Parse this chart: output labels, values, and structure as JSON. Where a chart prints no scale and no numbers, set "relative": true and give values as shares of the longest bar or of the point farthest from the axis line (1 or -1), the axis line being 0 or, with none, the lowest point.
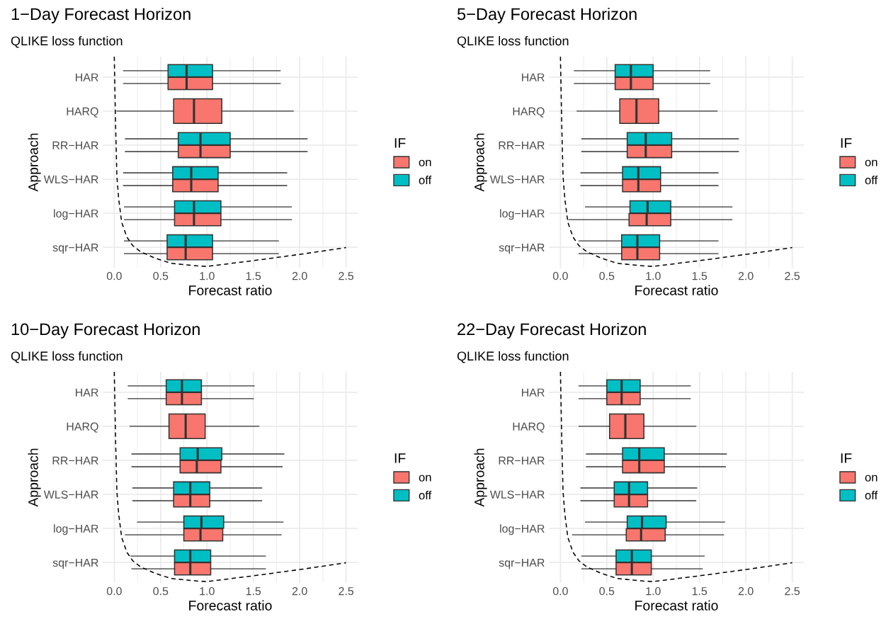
{
  "chart_data": [
    {
      "type": "box",
      "title": "1−Day Forecast Horizon",
      "subtitle": "QLIKE loss function",
      "xlabel": "Forecast ratio",
      "ylabel": "Approach",
      "legend_title": "IF",
      "orientation": "horizontal",
      "grid": true,
      "legend": "right",
      "categories": [
        "HAR",
        "HARQ",
        "RR−HAR",
        "WLS−HAR",
        "log−HAR",
        "sqr−HAR"
      ],
      "xlim": [
        -0.125,
        2.625
      ],
      "xticks": [
        {
          "value": 0,
          "label": "0.0"
        },
        0.5,
        {
          "value": 1,
          "label": "1.0"
        },
        1.5,
        {
          "value": 2,
          "label": "2.0"
        },
        2.5
      ],
      "series": [
        {
          "name": "on",
          "color": "#f8766d",
          "boxes": [
            {
              "low": 0.1,
              "q1": 0.58,
              "median": 0.78,
              "q3": 1.06,
              "high": 1.79
            },
            {
              "low": 0.03,
              "q1": 0.64,
              "median": 0.86,
              "q3": 1.16,
              "high": 1.93
            },
            {
              "low": 0.12,
              "q1": 0.69,
              "median": 0.93,
              "q3": 1.25,
              "high": 2.08
            },
            {
              "low": 0.1,
              "q1": 0.63,
              "median": 0.83,
              "q3": 1.12,
              "high": 1.86
            },
            {
              "low": 0.11,
              "q1": 0.65,
              "median": 0.86,
              "q3": 1.15,
              "high": 1.91
            },
            {
              "low": 0.11,
              "q1": 0.57,
              "median": 0.77,
              "q3": 1.06,
              "high": 1.77
            }
          ]
        },
        {
          "name": "off",
          "color": "#00bfc4",
          "boxes": [
            {
              "low": 0.1,
              "q1": 0.58,
              "median": 0.78,
              "q3": 1.06,
              "high": 1.79
            },
            null,
            {
              "low": 0.12,
              "q1": 0.69,
              "median": 0.93,
              "q3": 1.25,
              "high": 2.08
            },
            {
              "low": 0.1,
              "q1": 0.63,
              "median": 0.83,
              "q3": 1.12,
              "high": 1.86
            },
            {
              "low": 0.11,
              "q1": 0.65,
              "median": 0.86,
              "q3": 1.15,
              "high": 1.91
            },
            {
              "low": 0.11,
              "q1": 0.57,
              "median": 0.77,
              "q3": 1.06,
              "high": 1.77
            }
          ]
        }
      ]
    },
    {
      "type": "line",
      "relative": true,
      "xlim": [
        -0.125,
        2.625
      ],
      "series": [
        {
          "color": "#000000",
          "line_style": "dashed",
          "x": [
            0,
            0.015,
            0.028,
            0.048,
            0.08,
            0.136,
            0.198,
            0.286,
            0.437,
            0.612,
            0.889,
            1.0,
            1.54,
            2.04,
            2.5
          ],
          "values": [
            1.0,
            0.66,
            0.43,
            0.32,
            0.21,
            0.14,
            0.1,
            0.07,
            0.04,
            0.015,
            0.003,
            0,
            0.03,
            0.06,
            0.09
          ]
        }
      ]
    },
    {
      "type": "box",
      "title": "5−Day Forecast Horizon",
      "subtitle": "QLIKE loss function",
      "xlabel": "Forecast ratio",
      "ylabel": "Approach",
      "legend_title": "IF",
      "orientation": "horizontal",
      "grid": true,
      "legend": "right",
      "categories": [
        "HAR",
        "HARQ",
        "RR−HAR",
        "WLS−HAR",
        "log−HAR",
        "sqr−HAR"
      ],
      "xlim": [
        -0.125,
        2.625
      ],
      "xticks": [
        {
          "value": 0,
          "label": "0.0"
        },
        0.5,
        {
          "value": 1,
          "label": "1.0"
        },
        1.5,
        {
          "value": 2,
          "label": "2.0"
        },
        2.5
      ],
      "series": [
        {
          "name": "on",
          "color": "#f8766d",
          "boxes": [
            {
              "low": 0.15,
              "q1": 0.59,
              "median": 0.76,
              "q3": 1.0,
              "high": 1.61
            },
            {
              "low": 0.18,
              "q1": 0.64,
              "median": 0.82,
              "q3": 1.06,
              "high": 1.69
            },
            {
              "low": 0.23,
              "q1": 0.72,
              "median": 0.92,
              "q3": 1.2,
              "high": 1.92
            },
            {
              "low": 0.22,
              "q1": 0.67,
              "median": 0.84,
              "q3": 1.08,
              "high": 1.7
            },
            {
              "low": 0.09,
              "q1": 0.74,
              "median": 0.93,
              "q3": 1.19,
              "high": 1.85
            },
            {
              "low": 0.2,
              "q1": 0.66,
              "median": 0.83,
              "q3": 1.07,
              "high": 1.7
            }
          ]
        },
        {
          "name": "off",
          "color": "#00bfc4",
          "boxes": [
            {
              "low": 0.15,
              "q1": 0.59,
              "median": 0.76,
              "q3": 1.0,
              "high": 1.61
            },
            null,
            {
              "low": 0.23,
              "q1": 0.72,
              "median": 0.92,
              "q3": 1.2,
              "high": 1.92
            },
            {
              "low": 0.22,
              "q1": 0.67,
              "median": 0.84,
              "q3": 1.08,
              "high": 1.7
            },
            {
              "low": 0.27,
              "q1": 0.75,
              "median": 0.94,
              "q3": 1.19,
              "high": 1.85
            },
            {
              "low": 0.2,
              "q1": 0.66,
              "median": 0.83,
              "q3": 1.07,
              "high": 1.7
            }
          ]
        }
      ]
    },
    {
      "type": "line",
      "relative": true,
      "xlim": [
        -0.125,
        2.625
      ],
      "series": [
        {
          "color": "#000000",
          "line_style": "dashed",
          "x": [
            0,
            0.015,
            0.028,
            0.048,
            0.08,
            0.136,
            0.198,
            0.286,
            0.437,
            0.612,
            0.889,
            1.0,
            1.54,
            2.04,
            2.5
          ],
          "values": [
            1.0,
            0.66,
            0.43,
            0.32,
            0.21,
            0.14,
            0.1,
            0.07,
            0.04,
            0.015,
            0.003,
            0,
            0.03,
            0.06,
            0.09
          ]
        }
      ]
    },
    {
      "type": "box",
      "title": "10−Day Forecast Horizon",
      "subtitle": "QLIKE loss function",
      "xlabel": "Forecast ratio",
      "ylabel": "Approach",
      "legend_title": "IF",
      "orientation": "horizontal",
      "grid": true,
      "legend": "right",
      "categories": [
        "HAR",
        "HARQ",
        "RR−HAR",
        "WLS−HAR",
        "log−HAR",
        "sqr−HAR"
      ],
      "xlim": [
        -0.125,
        2.625
      ],
      "xticks": [
        {
          "value": 0,
          "label": "0.0"
        },
        0.5,
        {
          "value": 1,
          "label": "1.0"
        },
        1.5,
        {
          "value": 2,
          "label": "2.0"
        },
        2.5
      ],
      "series": [
        {
          "name": "on",
          "color": "#f8766d",
          "boxes": [
            {
              "low": 0.15,
              "q1": 0.56,
              "median": 0.73,
              "q3": 0.94,
              "high": 1.5
            },
            {
              "low": 0.17,
              "q1": 0.59,
              "median": 0.77,
              "q3": 0.98,
              "high": 1.56
            },
            {
              "low": 0.19,
              "q1": 0.71,
              "median": 0.89,
              "q3": 1.15,
              "high": 1.81
            },
            {
              "low": 0.2,
              "q1": 0.64,
              "median": 0.82,
              "q3": 1.03,
              "high": 1.59
            },
            {
              "low": 0.12,
              "q1": 0.75,
              "median": 0.93,
              "q3": 1.17,
              "high": 1.8
            },
            {
              "low": 0.19,
              "q1": 0.65,
              "median": 0.82,
              "q3": 1.04,
              "high": 1.63
            }
          ]
        },
        {
          "name": "off",
          "color": "#00bfc4",
          "boxes": [
            {
              "low": 0.15,
              "q1": 0.56,
              "median": 0.73,
              "q3": 0.94,
              "high": 1.51
            },
            null,
            {
              "low": 0.19,
              "q1": 0.71,
              "median": 0.9,
              "q3": 1.16,
              "high": 1.83
            },
            {
              "low": 0.2,
              "q1": 0.64,
              "median": 0.82,
              "q3": 1.03,
              "high": 1.59
            },
            {
              "low": 0.25,
              "q1": 0.75,
              "median": 0.94,
              "q3": 1.18,
              "high": 1.82
            },
            {
              "low": 0.18,
              "q1": 0.65,
              "median": 0.82,
              "q3": 1.04,
              "high": 1.63
            }
          ]
        }
      ]
    },
    {
      "type": "line",
      "relative": true,
      "xlim": [
        -0.125,
        2.625
      ],
      "series": [
        {
          "color": "#000000",
          "line_style": "dashed",
          "x": [
            0,
            0.015,
            0.028,
            0.048,
            0.08,
            0.136,
            0.198,
            0.286,
            0.437,
            0.612,
            0.889,
            1.0,
            1.54,
            2.04,
            2.5
          ],
          "values": [
            1.0,
            0.66,
            0.43,
            0.32,
            0.21,
            0.14,
            0.1,
            0.07,
            0.04,
            0.015,
            0.003,
            0,
            0.03,
            0.06,
            0.09
          ]
        }
      ]
    },
    {
      "type": "box",
      "title": "22−Day Forecast Horizon",
      "subtitle": "QLIKE loss function",
      "xlabel": "Forecast ratio",
      "ylabel": "Approach",
      "legend_title": "IF",
      "orientation": "horizontal",
      "grid": true,
      "legend": "right",
      "categories": [
        "HAR",
        "HARQ",
        "RR−HAR",
        "WLS−HAR",
        "log−HAR",
        "sqr−HAR"
      ],
      "xlim": [
        -0.125,
        2.625
      ],
      "xticks": [
        {
          "value": 0,
          "label": "0.0"
        },
        0.5,
        {
          "value": 1,
          "label": "1.0"
        },
        1.5,
        {
          "value": 2,
          "label": "2.0"
        },
        2.5
      ],
      "series": [
        {
          "name": "on",
          "color": "#f8766d",
          "boxes": [
            {
              "low": 0.2,
              "q1": 0.5,
              "median": 0.66,
              "q3": 0.86,
              "high": 1.4
            },
            {
              "low": 0.2,
              "q1": 0.53,
              "median": 0.7,
              "q3": 0.9,
              "high": 1.46
            },
            {
              "low": 0.28,
              "q1": 0.67,
              "median": 0.85,
              "q3": 1.12,
              "high": 1.78
            },
            {
              "low": 0.22,
              "q1": 0.58,
              "median": 0.74,
              "q3": 0.94,
              "high": 1.46
            },
            {
              "low": 0.13,
              "q1": 0.71,
              "median": 0.87,
              "q3": 1.13,
              "high": 1.76
            },
            {
              "low": 0.23,
              "q1": 0.6,
              "median": 0.77,
              "q3": 0.98,
              "high": 1.53
            }
          ]
        },
        {
          "name": "off",
          "color": "#00bfc4",
          "boxes": [
            {
              "low": 0.2,
              "q1": 0.5,
              "median": 0.66,
              "q3": 0.86,
              "high": 1.4
            },
            null,
            {
              "low": 0.28,
              "q1": 0.67,
              "median": 0.85,
              "q3": 1.12,
              "high": 1.79
            },
            {
              "low": 0.22,
              "q1": 0.58,
              "median": 0.74,
              "q3": 0.94,
              "high": 1.47
            },
            {
              "low": 0.27,
              "q1": 0.72,
              "median": 0.88,
              "q3": 1.14,
              "high": 1.77
            },
            {
              "low": 0.23,
              "q1": 0.6,
              "median": 0.77,
              "q3": 0.98,
              "high": 1.55
            }
          ]
        }
      ]
    },
    {
      "type": "line",
      "relative": true,
      "xlim": [
        -0.125,
        2.625
      ],
      "series": [
        {
          "color": "#000000",
          "line_style": "dashed",
          "x": [
            0,
            0.015,
            0.028,
            0.048,
            0.08,
            0.136,
            0.198,
            0.286,
            0.437,
            0.612,
            0.889,
            1.0,
            1.54,
            2.04,
            2.5
          ],
          "values": [
            1.0,
            0.66,
            0.43,
            0.32,
            0.21,
            0.14,
            0.1,
            0.07,
            0.04,
            0.015,
            0.003,
            0,
            0.03,
            0.06,
            0.09
          ]
        }
      ]
    }
  ]
}
